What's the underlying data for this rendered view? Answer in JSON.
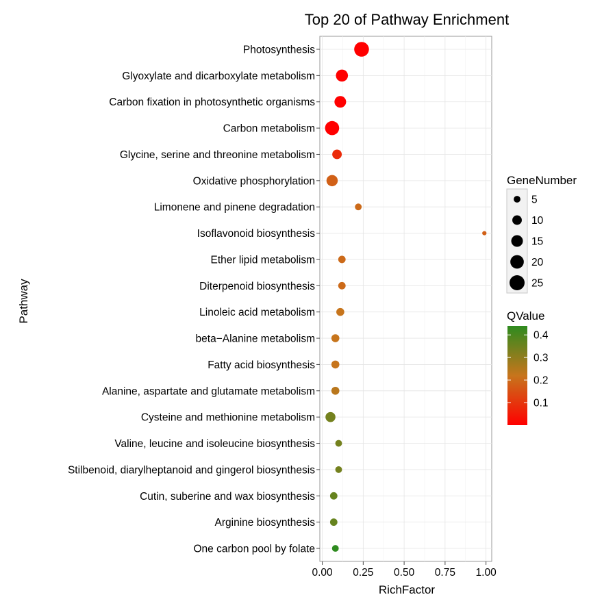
{
  "chart_data": {
    "type": "scatter",
    "title": "Top 20 of Pathway Enrichment",
    "xlabel": "RichFactor",
    "ylabel": "Pathway",
    "xlim": [
      -0.015,
      1.035
    ],
    "x_ticks": [
      "0.00",
      "0.25",
      "0.50",
      "0.75",
      "1.00"
    ],
    "grid": true,
    "categories": [
      "Photosynthesis",
      "Glyoxylate and dicarboxylate metabolism",
      "Carbon fixation in photosynthetic organisms",
      "Carbon metabolism",
      "Glycine, serine and threonine metabolism",
      "Oxidative phosphorylation",
      "Limonene and pinene degradation",
      "Isoflavonoid biosynthesis",
      "Ether lipid metabolism",
      "Diterpenoid biosynthesis",
      "Linoleic acid metabolism",
      "beta−Alanine metabolism",
      "Fatty acid biosynthesis",
      "Alanine, aspartate and glutamate metabolism",
      "Cysteine and methionine metabolism",
      "Valine, leucine and isoleucine biosynthesis",
      "Stilbenoid, diarylheptanoid and gingerol biosynthesis",
      "Cutin, suberine and wax biosynthesis",
      "Arginine biosynthesis",
      "One carbon pool by folate"
    ],
    "rich_factor": [
      0.24,
      0.12,
      0.11,
      0.06,
      0.09,
      0.06,
      0.22,
      0.99,
      0.12,
      0.12,
      0.11,
      0.08,
      0.08,
      0.08,
      0.05,
      0.1,
      0.1,
      0.07,
      0.07,
      0.08
    ],
    "gene_number": [
      24,
      16,
      15,
      22,
      10,
      14,
      5,
      2,
      6,
      6,
      7,
      7,
      7,
      7,
      11,
      5,
      5,
      6,
      6,
      5
    ],
    "q_value": [
      0.0,
      0.0,
      0.0,
      0.0,
      0.08,
      0.18,
      0.2,
      0.18,
      0.2,
      0.2,
      0.22,
      0.22,
      0.22,
      0.24,
      0.34,
      0.34,
      0.34,
      0.36,
      0.36,
      0.44
    ],
    "size_legend": {
      "title": "GeneNumber",
      "labels": [
        "5",
        "10",
        "15",
        "20",
        "25"
      ],
      "values": [
        5,
        10,
        15,
        20,
        25
      ]
    },
    "color_legend": {
      "title": "QValue",
      "labels": [
        "0.4",
        "0.3",
        "0.2",
        "0.1"
      ],
      "values": [
        0.4,
        0.3,
        0.2,
        0.1
      ],
      "range": [
        0.0,
        0.44
      ],
      "colors": {
        "low": "#ff0000",
        "mid": "#c7751c",
        "high": "#2e8b1f"
      }
    },
    "legend_position": "right"
  }
}
